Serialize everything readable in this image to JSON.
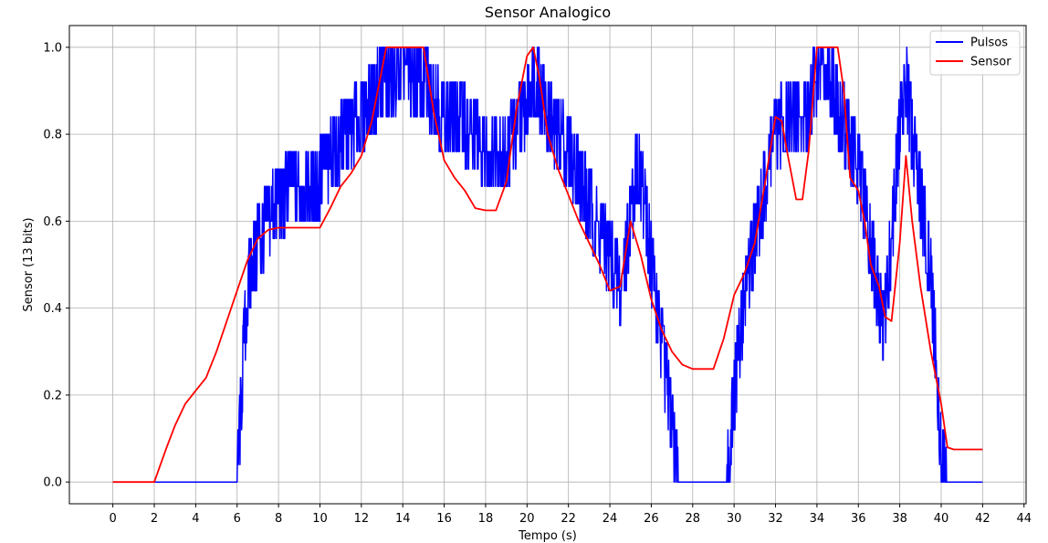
{
  "chart_data": {
    "type": "line",
    "title": "Sensor Analogico",
    "xlabel": "Tempo (s)",
    "ylabel": "Sensor (13 bits)",
    "xlim": [
      -2.1,
      44.1
    ],
    "ylim": [
      -0.05,
      1.05
    ],
    "xticks": [
      0,
      2,
      4,
      6,
      8,
      10,
      12,
      14,
      16,
      18,
      20,
      22,
      24,
      26,
      28,
      30,
      32,
      34,
      36,
      38,
      40,
      42,
      44
    ],
    "yticks": [
      0.0,
      0.2,
      0.4,
      0.6,
      0.8,
      1.0
    ],
    "ytick_labels": [
      "0.0",
      "0.2",
      "0.4",
      "0.6",
      "0.8",
      "1.0"
    ],
    "grid": true,
    "legend_position": "top-right",
    "series": [
      {
        "name": "Pulsos",
        "color": "#0000ff",
        "noisy": true,
        "x": [
          0,
          6,
          6.1,
          6.3,
          6.6,
          7,
          7.5,
          8,
          9,
          10,
          11,
          12,
          13,
          14,
          15,
          16,
          17,
          18,
          19,
          19.8,
          20.3,
          20.6,
          21,
          22,
          23,
          24,
          24.5,
          25,
          25.3,
          25.6,
          26,
          26.6,
          27,
          27.3,
          28,
          29,
          29.6,
          30,
          30.5,
          31,
          31.5,
          32,
          32.5,
          33,
          33.5,
          34,
          34.5,
          35,
          35.5,
          36,
          36.5,
          37,
          37.2,
          37.5,
          38,
          38.3,
          38.6,
          39,
          39.5,
          39.8,
          40,
          40.3,
          42
        ],
        "y": [
          0,
          0,
          0.1,
          0.3,
          0.48,
          0.55,
          0.6,
          0.65,
          0.68,
          0.7,
          0.78,
          0.84,
          0.92,
          0.95,
          0.92,
          0.84,
          0.82,
          0.76,
          0.76,
          0.84,
          0.94,
          0.9,
          0.84,
          0.76,
          0.64,
          0.52,
          0.44,
          0.6,
          0.74,
          0.66,
          0.5,
          0.28,
          0.14,
          0,
          0,
          0,
          0,
          0.2,
          0.42,
          0.56,
          0.68,
          0.8,
          0.84,
          0.82,
          0.84,
          0.94,
          0.96,
          0.86,
          0.8,
          0.72,
          0.58,
          0.42,
          0.34,
          0.5,
          0.82,
          0.92,
          0.8,
          0.66,
          0.48,
          0.24,
          0.06,
          0,
          0
        ]
      },
      {
        "name": "Sensor",
        "color": "#ff0000",
        "noisy": false,
        "x": [
          0,
          2,
          2.3,
          2.6,
          3,
          3.5,
          4,
          4.5,
          5,
          5.5,
          6,
          6.5,
          7,
          7.5,
          8,
          9,
          10,
          10.5,
          11,
          11.5,
          12,
          12.5,
          13,
          13.2,
          14,
          15,
          15.5,
          16,
          16.5,
          17,
          17.5,
          18,
          18.5,
          19,
          19.5,
          20,
          20.3,
          20.6,
          21,
          21.5,
          22,
          22.5,
          23,
          23.5,
          24,
          24.5,
          25,
          25.5,
          26,
          26.5,
          27,
          27.5,
          28,
          29,
          29.5,
          30,
          30.5,
          31,
          31.5,
          32,
          32.3,
          32.6,
          33,
          33.3,
          33.6,
          34,
          34.2,
          34.5,
          35,
          35.3,
          35.6,
          36,
          36.3,
          36.6,
          37,
          37.3,
          37.6,
          38,
          38.3,
          38.6,
          39,
          39.5,
          40,
          40.3,
          40.6,
          42
        ],
        "y": [
          0,
          0,
          0.04,
          0.08,
          0.13,
          0.18,
          0.21,
          0.24,
          0.3,
          0.37,
          0.44,
          0.51,
          0.56,
          0.58,
          0.585,
          0.585,
          0.585,
          0.63,
          0.68,
          0.71,
          0.75,
          0.83,
          0.95,
          1.0,
          1.0,
          1.0,
          0.85,
          0.74,
          0.7,
          0.67,
          0.63,
          0.625,
          0.625,
          0.69,
          0.86,
          0.98,
          1.0,
          0.93,
          0.8,
          0.72,
          0.66,
          0.6,
          0.55,
          0.5,
          0.44,
          0.45,
          0.6,
          0.52,
          0.42,
          0.35,
          0.3,
          0.27,
          0.26,
          0.26,
          0.33,
          0.43,
          0.48,
          0.55,
          0.69,
          0.84,
          0.83,
          0.75,
          0.65,
          0.65,
          0.76,
          1.0,
          1.0,
          1.0,
          1.0,
          0.9,
          0.7,
          0.67,
          0.6,
          0.5,
          0.45,
          0.38,
          0.37,
          0.55,
          0.75,
          0.6,
          0.45,
          0.3,
          0.18,
          0.08,
          0.075,
          0.075
        ]
      }
    ]
  }
}
